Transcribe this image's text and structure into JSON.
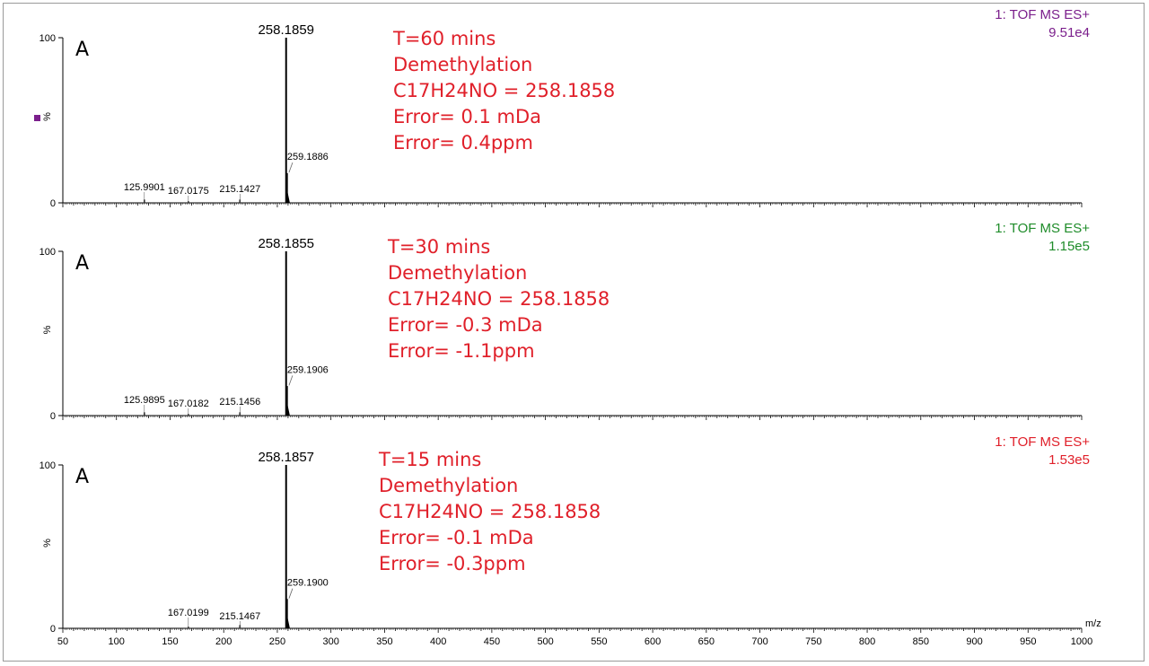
{
  "chart_data": [
    {
      "type": "mass-spectrum",
      "panel_letter": "A",
      "instrument": "1: TOF MS ES+",
      "intensity": "9.51e4",
      "instrument_color": "#7b1f8c",
      "ylabel": "%",
      "yticks": [
        "100",
        "0"
      ],
      "ylim": [
        0,
        100
      ],
      "xlim": [
        50,
        1000
      ],
      "peaks": [
        {
          "mz": 125.9901,
          "rel": 2
        },
        {
          "mz": 167.0175,
          "rel": 1
        },
        {
          "mz": 215.1427,
          "rel": 2
        },
        {
          "mz": 258.1859,
          "rel": 100
        },
        {
          "mz": 259.1886,
          "rel": 18
        }
      ],
      "labels": [
        {
          "text": "258.1859",
          "mz": 258.1859,
          "main": true
        },
        {
          "text": "259.1886",
          "mz": 259.1886
        },
        {
          "text": "125.9901",
          "mz": 125.9901
        },
        {
          "text": "167.0175",
          "mz": 167.0175
        },
        {
          "text": "215.1427",
          "mz": 215.1427
        }
      ],
      "annotation": [
        "T=60 mins",
        "Demethylation",
        "C17H24NO = 258.1858",
        "Error= 0.1 mDa",
        "Error= 0.4ppm"
      ]
    },
    {
      "type": "mass-spectrum",
      "panel_letter": "A",
      "instrument": "1: TOF MS ES+",
      "intensity": "1.15e5",
      "instrument_color": "#1f8c2a",
      "ylabel": "%",
      "yticks": [
        "100",
        "0"
      ],
      "ylim": [
        0,
        100
      ],
      "xlim": [
        50,
        1000
      ],
      "peaks": [
        {
          "mz": 125.9895,
          "rel": 2
        },
        {
          "mz": 167.0182,
          "rel": 1
        },
        {
          "mz": 215.1456,
          "rel": 2
        },
        {
          "mz": 258.1855,
          "rel": 100
        },
        {
          "mz": 259.1906,
          "rel": 18
        }
      ],
      "labels": [
        {
          "text": "258.1855",
          "mz": 258.1855,
          "main": true
        },
        {
          "text": "259.1906",
          "mz": 259.1906
        },
        {
          "text": "125.9895",
          "mz": 125.9895
        },
        {
          "text": "167.0182",
          "mz": 167.0182
        },
        {
          "text": "215.1456",
          "mz": 215.1456
        }
      ],
      "annotation": [
        "T=30 mins",
        "Demethylation",
        "C17H24NO = 258.1858",
        "Error= -0.3 mDa",
        "Error= -1.1ppm"
      ]
    },
    {
      "type": "mass-spectrum",
      "panel_letter": "A",
      "instrument": "1: TOF MS ES+",
      "intensity": "1.53e5",
      "instrument_color": "#e0202a",
      "ylabel": "%",
      "yticks": [
        "100",
        "0"
      ],
      "ylim": [
        0,
        100
      ],
      "xlim": [
        50,
        1000
      ],
      "xlabel": "m/z",
      "xticks": [
        50,
        100,
        150,
        200,
        250,
        300,
        350,
        400,
        450,
        500,
        550,
        600,
        650,
        700,
        750,
        800,
        850,
        900,
        950,
        1000
      ],
      "peaks": [
        {
          "mz": 167.0199,
          "rel": 1
        },
        {
          "mz": 215.1467,
          "rel": 2
        },
        {
          "mz": 258.1857,
          "rel": 100
        },
        {
          "mz": 259.19,
          "rel": 18
        }
      ],
      "labels": [
        {
          "text": "258.1857",
          "mz": 258.1857,
          "main": true
        },
        {
          "text": "259.1900",
          "mz": 259.19
        },
        {
          "text": "167.0199",
          "mz": 167.0199
        },
        {
          "text": "215.1467",
          "mz": 215.1467
        }
      ],
      "annotation": [
        "T=15 mins",
        "Demethylation",
        "C17H24NO = 258.1858",
        "Error= -0.1 mDa",
        "Error= -0.3ppm"
      ]
    }
  ],
  "colors": {
    "annotation": "#e0202a",
    "axis": "#000000",
    "legend_marker": "#7b1f8c"
  }
}
